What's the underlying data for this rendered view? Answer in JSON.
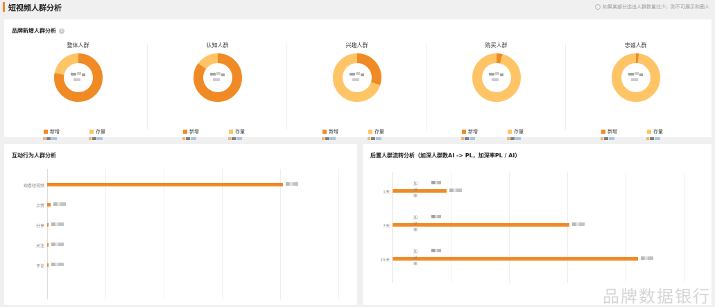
{
  "header": {
    "title": "短视频人群分析",
    "hint": "如果某部分选出人群数量过少，则不可展示和圈人"
  },
  "brand_section": {
    "title": "品牌新增人群分析",
    "legend_new": "新增",
    "legend_stock": "存量",
    "ratio_label": "占比",
    "segments": [
      {
        "title": "整体人群"
      },
      {
        "title": "认知人群"
      },
      {
        "title": "兴趣人群"
      },
      {
        "title": "购买人群"
      },
      {
        "title": "忠诚人群"
      }
    ]
  },
  "interaction_section": {
    "title": "互动行为人群分析",
    "rows": [
      {
        "label": "观看短视频"
      },
      {
        "label": "点赞"
      },
      {
        "label": "分享"
      },
      {
        "label": "关注"
      },
      {
        "label": "评论"
      }
    ]
  },
  "flow_section": {
    "title": "后置人群流转分析（加深人群数AI -> PL，加深率PL / AI）",
    "rate_label": "加深率",
    "rows": [
      {
        "label": "1天"
      },
      {
        "label": "7天"
      },
      {
        "label": "15天"
      }
    ]
  },
  "chart_data": [
    {
      "type": "pie",
      "title": "整体人群",
      "labels": [
        "新增",
        "存量"
      ],
      "values": [
        0.78,
        0.22
      ]
    },
    {
      "type": "pie",
      "title": "认知人群",
      "labels": [
        "新增",
        "存量"
      ],
      "values": [
        0.85,
        0.15
      ]
    },
    {
      "type": "pie",
      "title": "兴趣人群",
      "labels": [
        "新增",
        "存量"
      ],
      "values": [
        0.3,
        0.7
      ]
    },
    {
      "type": "pie",
      "title": "购买人群",
      "labels": [
        "新增",
        "存量"
      ],
      "values": [
        0.04,
        0.96
      ]
    },
    {
      "type": "pie",
      "title": "忠诚人群",
      "labels": [
        "新增",
        "存量"
      ],
      "values": [
        0.02,
        0.98
      ]
    },
    {
      "type": "bar",
      "title": "互动行为人群分析",
      "orientation": "horizontal",
      "categories": [
        "观看短视频",
        "点赞",
        "分享",
        "关注",
        "评论"
      ],
      "values": [
        100,
        1.5,
        0.6,
        0.2,
        0.15
      ],
      "grid": true
    },
    {
      "type": "bar",
      "title": "后置人群流转分析（加深人群数AI -> PL，加深率PL / AI）",
      "orientation": "horizontal",
      "categories": [
        "1天",
        "7天",
        "15天"
      ],
      "values": [
        22,
        72,
        100
      ],
      "grid": true
    }
  ],
  "colors": {
    "new": "#f08a24",
    "stock": "#fec466",
    "accent": "#f08a24",
    "page_bg": "#f0f0f0"
  },
  "watermark": "品牌数据银行"
}
